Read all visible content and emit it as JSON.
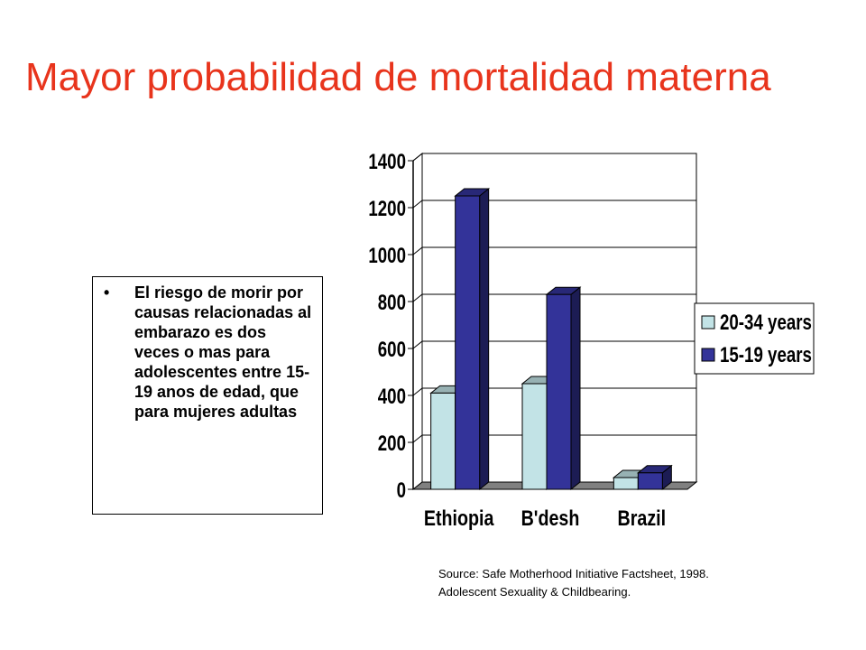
{
  "slide": {
    "title": "Mayor probabilidad de mortalidad materna",
    "bullet_symbol": "•",
    "bullet_text": "El riesgo de morir por causas relacionadas al embarazo es dos veces o mas para adolescentes entre 15-19 anos de edad, que para mujeres adultas",
    "source_line1": "Source: Safe Motherhood Initiative Factsheet, 1998.",
    "source_line2": "Adolescent Sexuality & Childbearing."
  },
  "chart_data": {
    "type": "bar",
    "categories": [
      "Ethiopia",
      "B'desh",
      "Brazil"
    ],
    "series": [
      {
        "name": "20-34 years",
        "values": [
          410,
          450,
          50
        ],
        "color": "#c2e3e6"
      },
      {
        "name": "15-19 years",
        "values": [
          1250,
          830,
          70
        ],
        "color": "#333399"
      }
    ],
    "yticks": [
      0,
      200,
      400,
      600,
      800,
      1000,
      1200,
      1400
    ],
    "ylim": [
      0,
      1400
    ],
    "grid": true,
    "legend_position": "right",
    "three_d": true
  }
}
